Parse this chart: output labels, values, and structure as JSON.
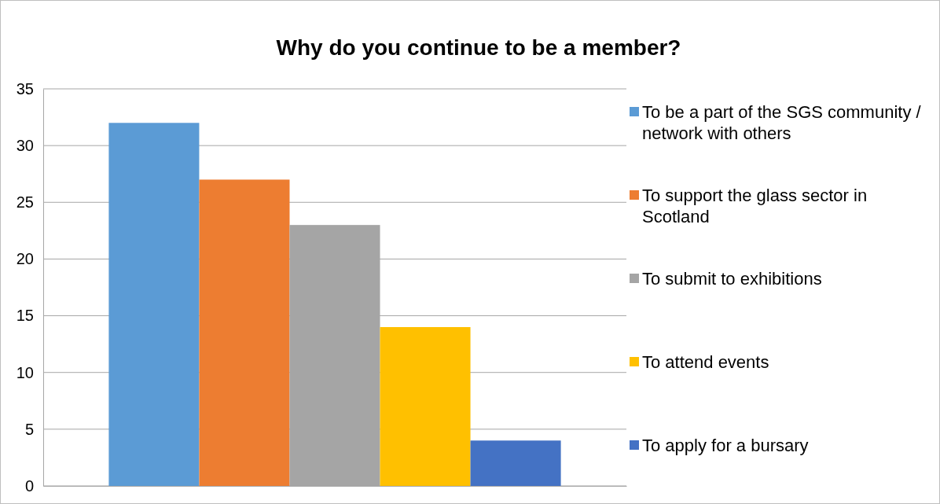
{
  "chart_data": {
    "type": "bar",
    "title": "Why do you continue to be a member?",
    "categories": [
      null
    ],
    "series": [
      {
        "name": "To be a part of the SGS community / network with others",
        "color": "#5b9bd5",
        "values": [
          32
        ]
      },
      {
        "name": "To support the glass sector in Scotland",
        "color": "#ed7d31",
        "values": [
          27
        ]
      },
      {
        "name": "To submit to exhibitions",
        "color": "#a5a5a5",
        "values": [
          23
        ]
      },
      {
        "name": "To attend events",
        "color": "#ffc000",
        "values": [
          14
        ]
      },
      {
        "name": "To apply for a bursary",
        "color": "#4472c4",
        "values": [
          4
        ]
      }
    ],
    "ylim": [
      0,
      35
    ],
    "yticks": [
      0,
      5,
      10,
      15,
      20,
      25,
      30,
      35
    ],
    "grid": "y",
    "legend": "right"
  }
}
